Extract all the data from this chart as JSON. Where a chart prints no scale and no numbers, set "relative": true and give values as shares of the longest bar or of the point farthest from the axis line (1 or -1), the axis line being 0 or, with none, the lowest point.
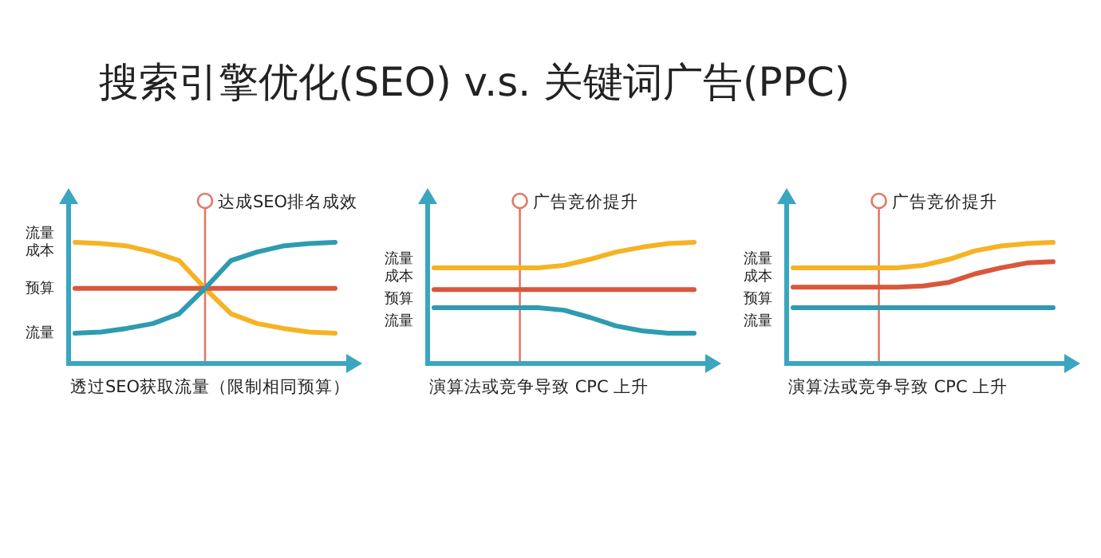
{
  "chart_data": [
    {
      "type": "line",
      "title": "搜索引擎优化(SEO) v.s. 关键词广告(PPC)",
      "xlabel": "透过SEO获取流量（限制相同预算）",
      "relative": true,
      "categories": [
        null,
        null,
        null,
        null,
        null,
        null,
        null,
        null,
        null,
        null,
        null
      ],
      "series": [
        {
          "name": "流量成本",
          "color": "#f5b324",
          "values": [
            1,
            0.99,
            0.97,
            0.92,
            0.85,
            0.62,
            0.41,
            0.33,
            0.29,
            0.26,
            0.25
          ]
        },
        {
          "name": "预算",
          "color": "#d9573b",
          "values": [
            0.62,
            0.62,
            0.62,
            0.62,
            0.62,
            0.62,
            0.62,
            0.62,
            0.62,
            0.62,
            0.62
          ]
        },
        {
          "name": "流量",
          "color": "#2e9bb0",
          "values": [
            0.25,
            0.26,
            0.29,
            0.33,
            0.41,
            0.62,
            0.85,
            0.92,
            0.97,
            0.99,
            1
          ]
        }
      ],
      "annotations": [
        "达成SEO排名成效"
      ],
      "marker": "none",
      "line_style": "solid",
      "grid": false,
      "legend": false
    },
    {
      "type": "line",
      "xlabel": "演算法或竞争导致 CPC 上升",
      "relative": true,
      "categories": [
        null,
        null,
        null,
        null,
        null,
        null,
        null,
        null,
        null,
        null,
        null
      ],
      "series": [
        {
          "name": "流量成本",
          "color": "#f5b324",
          "values": [
            0.79,
            0.79,
            0.79,
            0.79,
            0.79,
            0.81,
            0.86,
            0.92,
            0.96,
            0.99,
            1
          ]
        },
        {
          "name": "预算",
          "color": "#d9573b",
          "values": [
            0.61,
            0.61,
            0.61,
            0.61,
            0.61,
            0.61,
            0.61,
            0.61,
            0.61,
            0.61,
            0.61
          ]
        },
        {
          "name": "流量",
          "color": "#2e9bb0",
          "values": [
            0.46,
            0.46,
            0.46,
            0.46,
            0.46,
            0.44,
            0.38,
            0.31,
            0.27,
            0.25,
            0.25
          ]
        }
      ],
      "annotations": [
        "广告竞价提升"
      ],
      "marker": "none",
      "line_style": "solid",
      "grid": false,
      "legend": false
    },
    {
      "type": "line",
      "xlabel": "演算法或竞争导致 CPC 上升",
      "relative": true,
      "categories": [
        null,
        null,
        null,
        null,
        null,
        null,
        null,
        null,
        null,
        null,
        null
      ],
      "series": [
        {
          "name": "流量成本",
          "color": "#f5b324",
          "values": [
            0.79,
            0.79,
            0.79,
            0.79,
            0.79,
            0.81,
            0.86,
            0.93,
            0.97,
            0.99,
            1
          ]
        },
        {
          "name": "预算",
          "color": "#d9573b",
          "values": [
            0.63,
            0.63,
            0.63,
            0.63,
            0.63,
            0.64,
            0.67,
            0.74,
            0.79,
            0.83,
            0.84
          ]
        },
        {
          "name": "流量",
          "color": "#2e9bb0",
          "values": [
            0.46,
            0.46,
            0.46,
            0.46,
            0.46,
            0.46,
            0.46,
            0.46,
            0.46,
            0.46,
            0.46
          ]
        }
      ],
      "annotations": [
        "广告竞价提升"
      ],
      "marker": "none",
      "line_style": "solid",
      "grid": false,
      "legend": false
    }
  ]
}
